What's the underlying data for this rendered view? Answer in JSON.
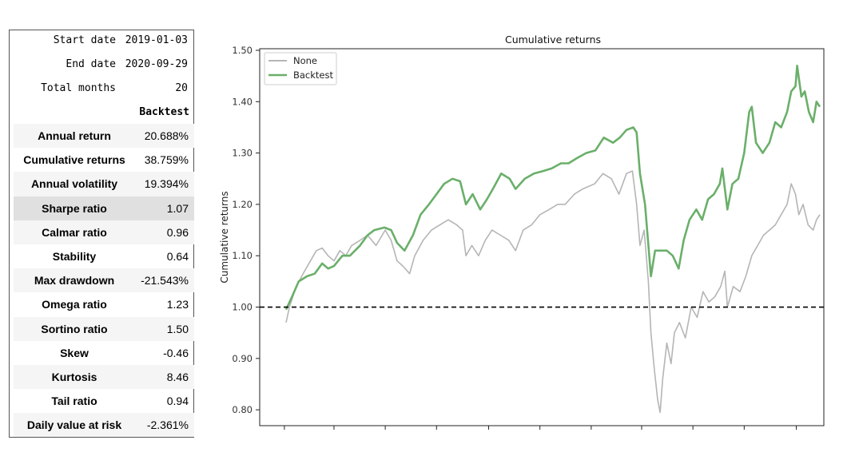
{
  "summary": {
    "header_rows": [
      {
        "label": "Start date",
        "value": "2019-01-03"
      },
      {
        "label": "End date",
        "value": "2020-09-29"
      },
      {
        "label": "Total months",
        "value": "20"
      }
    ],
    "column_header": "Backtest",
    "rows": [
      {
        "label": "Annual return",
        "value": "20.688%"
      },
      {
        "label": "Cumulative returns",
        "value": "38.759%"
      },
      {
        "label": "Annual volatility",
        "value": "19.394%"
      },
      {
        "label": "Sharpe ratio",
        "value": "1.07"
      },
      {
        "label": "Calmar ratio",
        "value": "0.96"
      },
      {
        "label": "Stability",
        "value": "0.64"
      },
      {
        "label": "Max drawdown",
        "value": "-21.543%"
      },
      {
        "label": "Omega ratio",
        "value": "1.23"
      },
      {
        "label": "Sortino ratio",
        "value": "1.50"
      },
      {
        "label": "Skew",
        "value": "-0.46"
      },
      {
        "label": "Kurtosis",
        "value": "8.46"
      },
      {
        "label": "Tail ratio",
        "value": "0.94"
      },
      {
        "label": "Daily value at risk",
        "value": "-2.361%"
      }
    ]
  },
  "chart_data": {
    "type": "line",
    "title": "Cumulative returns",
    "xlabel": "",
    "ylabel": "Cumulative returns",
    "ylim": [
      0.78,
      1.5
    ],
    "yticks": [
      0.8,
      0.9,
      1.0,
      1.1,
      1.2,
      1.3,
      1.4,
      1.5
    ],
    "ytick_labels": [
      "0.80",
      "0.90",
      "1.00",
      "1.10",
      "1.20",
      "1.30",
      "1.40",
      "1.50"
    ],
    "x_range": [
      "2019-01-03",
      "2020-09-29"
    ],
    "xticks": [
      "2019-01-01",
      "2019-03-01",
      "2019-05-01",
      "2019-07-01",
      "2019-09-01",
      "2019-11-01",
      "2020-01-01",
      "2020-03-01",
      "2020-05-01",
      "2020-07-01",
      "2020-09-01"
    ],
    "grid": false,
    "legend_position": "top-left",
    "reference_line": {
      "y": 1.0,
      "style": "dashed",
      "color": "#000000"
    },
    "series": [
      {
        "name": "None",
        "color": "#b5b5b5",
        "points": [
          [
            "2019-01-03",
            0.97
          ],
          [
            "2019-01-07",
            1.0
          ],
          [
            "2019-01-15",
            1.04
          ],
          [
            "2019-01-25",
            1.07
          ],
          [
            "2019-02-01",
            1.09
          ],
          [
            "2019-02-08",
            1.11
          ],
          [
            "2019-02-15",
            1.115
          ],
          [
            "2019-02-22",
            1.1
          ],
          [
            "2019-03-01",
            1.09
          ],
          [
            "2019-03-08",
            1.11
          ],
          [
            "2019-03-15",
            1.1
          ],
          [
            "2019-03-22",
            1.12
          ],
          [
            "2019-04-01",
            1.13
          ],
          [
            "2019-04-10",
            1.14
          ],
          [
            "2019-04-20",
            1.12
          ],
          [
            "2019-05-01",
            1.15
          ],
          [
            "2019-05-08",
            1.13
          ],
          [
            "2019-05-15",
            1.09
          ],
          [
            "2019-05-22",
            1.08
          ],
          [
            "2019-05-30",
            1.065
          ],
          [
            "2019-06-05",
            1.1
          ],
          [
            "2019-06-15",
            1.13
          ],
          [
            "2019-06-25",
            1.15
          ],
          [
            "2019-07-05",
            1.16
          ],
          [
            "2019-07-15",
            1.17
          ],
          [
            "2019-07-25",
            1.16
          ],
          [
            "2019-08-01",
            1.15
          ],
          [
            "2019-08-05",
            1.1
          ],
          [
            "2019-08-12",
            1.12
          ],
          [
            "2019-08-20",
            1.1
          ],
          [
            "2019-08-28",
            1.13
          ],
          [
            "2019-09-05",
            1.15
          ],
          [
            "2019-09-15",
            1.14
          ],
          [
            "2019-09-25",
            1.13
          ],
          [
            "2019-10-03",
            1.11
          ],
          [
            "2019-10-12",
            1.15
          ],
          [
            "2019-10-22",
            1.16
          ],
          [
            "2019-11-01",
            1.18
          ],
          [
            "2019-11-12",
            1.19
          ],
          [
            "2019-11-22",
            1.2
          ],
          [
            "2019-12-01",
            1.2
          ],
          [
            "2019-12-12",
            1.22
          ],
          [
            "2019-12-22",
            1.23
          ],
          [
            "2020-01-05",
            1.24
          ],
          [
            "2020-01-15",
            1.26
          ],
          [
            "2020-01-25",
            1.25
          ],
          [
            "2020-02-03",
            1.22
          ],
          [
            "2020-02-12",
            1.26
          ],
          [
            "2020-02-19",
            1.265
          ],
          [
            "2020-02-24",
            1.2
          ],
          [
            "2020-02-28",
            1.12
          ],
          [
            "2020-03-04",
            1.15
          ],
          [
            "2020-03-09",
            1.05
          ],
          [
            "2020-03-12",
            0.95
          ],
          [
            "2020-03-16",
            0.88
          ],
          [
            "2020-03-20",
            0.82
          ],
          [
            "2020-03-23",
            0.795
          ],
          [
            "2020-03-26",
            0.86
          ],
          [
            "2020-03-31",
            0.93
          ],
          [
            "2020-04-05",
            0.89
          ],
          [
            "2020-04-09",
            0.95
          ],
          [
            "2020-04-15",
            0.97
          ],
          [
            "2020-04-22",
            0.94
          ],
          [
            "2020-04-29",
            1.0
          ],
          [
            "2020-05-06",
            0.98
          ],
          [
            "2020-05-13",
            1.03
          ],
          [
            "2020-05-20",
            1.01
          ],
          [
            "2020-05-27",
            1.02
          ],
          [
            "2020-06-03",
            1.04
          ],
          [
            "2020-06-08",
            1.07
          ],
          [
            "2020-06-11",
            1.0
          ],
          [
            "2020-06-18",
            1.04
          ],
          [
            "2020-06-26",
            1.03
          ],
          [
            "2020-07-03",
            1.06
          ],
          [
            "2020-07-10",
            1.1
          ],
          [
            "2020-07-17",
            1.12
          ],
          [
            "2020-07-24",
            1.14
          ],
          [
            "2020-07-31",
            1.15
          ],
          [
            "2020-08-07",
            1.16
          ],
          [
            "2020-08-14",
            1.18
          ],
          [
            "2020-08-21",
            1.2
          ],
          [
            "2020-08-26",
            1.24
          ],
          [
            "2020-08-31",
            1.22
          ],
          [
            "2020-09-04",
            1.18
          ],
          [
            "2020-09-09",
            1.2
          ],
          [
            "2020-09-15",
            1.16
          ],
          [
            "2020-09-21",
            1.15
          ],
          [
            "2020-09-25",
            1.17
          ],
          [
            "2020-09-29",
            1.18
          ]
        ]
      },
      {
        "name": "Backtest",
        "color": "#6aaf6a",
        "points": [
          [
            "2019-01-03",
            0.995
          ],
          [
            "2019-01-10",
            1.02
          ],
          [
            "2019-01-18",
            1.05
          ],
          [
            "2019-01-28",
            1.06
          ],
          [
            "2019-02-06",
            1.065
          ],
          [
            "2019-02-15",
            1.085
          ],
          [
            "2019-02-22",
            1.075
          ],
          [
            "2019-03-01",
            1.08
          ],
          [
            "2019-03-11",
            1.1
          ],
          [
            "2019-03-20",
            1.1
          ],
          [
            "2019-04-01",
            1.12
          ],
          [
            "2019-04-10",
            1.14
          ],
          [
            "2019-04-18",
            1.15
          ],
          [
            "2019-04-30",
            1.155
          ],
          [
            "2019-05-08",
            1.15
          ],
          [
            "2019-05-15",
            1.125
          ],
          [
            "2019-05-24",
            1.11
          ],
          [
            "2019-06-03",
            1.14
          ],
          [
            "2019-06-12",
            1.18
          ],
          [
            "2019-06-22",
            1.2
          ],
          [
            "2019-07-01",
            1.22
          ],
          [
            "2019-07-10",
            1.24
          ],
          [
            "2019-07-20",
            1.25
          ],
          [
            "2019-07-29",
            1.245
          ],
          [
            "2019-08-05",
            1.2
          ],
          [
            "2019-08-13",
            1.22
          ],
          [
            "2019-08-22",
            1.19
          ],
          [
            "2019-08-30",
            1.21
          ],
          [
            "2019-09-06",
            1.23
          ],
          [
            "2019-09-16",
            1.26
          ],
          [
            "2019-09-26",
            1.25
          ],
          [
            "2019-10-03",
            1.23
          ],
          [
            "2019-10-14",
            1.25
          ],
          [
            "2019-10-25",
            1.26
          ],
          [
            "2019-11-05",
            1.265
          ],
          [
            "2019-11-15",
            1.27
          ],
          [
            "2019-11-26",
            1.28
          ],
          [
            "2019-12-05",
            1.28
          ],
          [
            "2019-12-15",
            1.29
          ],
          [
            "2019-12-26",
            1.3
          ],
          [
            "2020-01-06",
            1.305
          ],
          [
            "2020-01-16",
            1.33
          ],
          [
            "2020-01-27",
            1.32
          ],
          [
            "2020-02-04",
            1.33
          ],
          [
            "2020-02-12",
            1.345
          ],
          [
            "2020-02-20",
            1.35
          ],
          [
            "2020-02-24",
            1.34
          ],
          [
            "2020-02-28",
            1.26
          ],
          [
            "2020-03-05",
            1.2
          ],
          [
            "2020-03-10",
            1.1
          ],
          [
            "2020-03-12",
            1.06
          ],
          [
            "2020-03-17",
            1.11
          ],
          [
            "2020-03-24",
            1.11
          ],
          [
            "2020-03-31",
            1.11
          ],
          [
            "2020-04-07",
            1.1
          ],
          [
            "2020-04-14",
            1.075
          ],
          [
            "2020-04-20",
            1.13
          ],
          [
            "2020-04-27",
            1.17
          ],
          [
            "2020-05-05",
            1.19
          ],
          [
            "2020-05-12",
            1.17
          ],
          [
            "2020-05-19",
            1.21
          ],
          [
            "2020-05-26",
            1.22
          ],
          [
            "2020-06-02",
            1.24
          ],
          [
            "2020-06-05",
            1.27
          ],
          [
            "2020-06-11",
            1.19
          ],
          [
            "2020-06-17",
            1.24
          ],
          [
            "2020-06-24",
            1.25
          ],
          [
            "2020-07-01",
            1.3
          ],
          [
            "2020-07-07",
            1.38
          ],
          [
            "2020-07-10",
            1.39
          ],
          [
            "2020-07-15",
            1.32
          ],
          [
            "2020-07-23",
            1.3
          ],
          [
            "2020-07-31",
            1.32
          ],
          [
            "2020-08-07",
            1.36
          ],
          [
            "2020-08-14",
            1.35
          ],
          [
            "2020-08-21",
            1.38
          ],
          [
            "2020-08-26",
            1.42
          ],
          [
            "2020-08-31",
            1.43
          ],
          [
            "2020-09-02",
            1.47
          ],
          [
            "2020-09-07",
            1.41
          ],
          [
            "2020-09-11",
            1.42
          ],
          [
            "2020-09-16",
            1.38
          ],
          [
            "2020-09-21",
            1.36
          ],
          [
            "2020-09-25",
            1.4
          ],
          [
            "2020-09-29",
            1.39
          ]
        ]
      }
    ]
  }
}
